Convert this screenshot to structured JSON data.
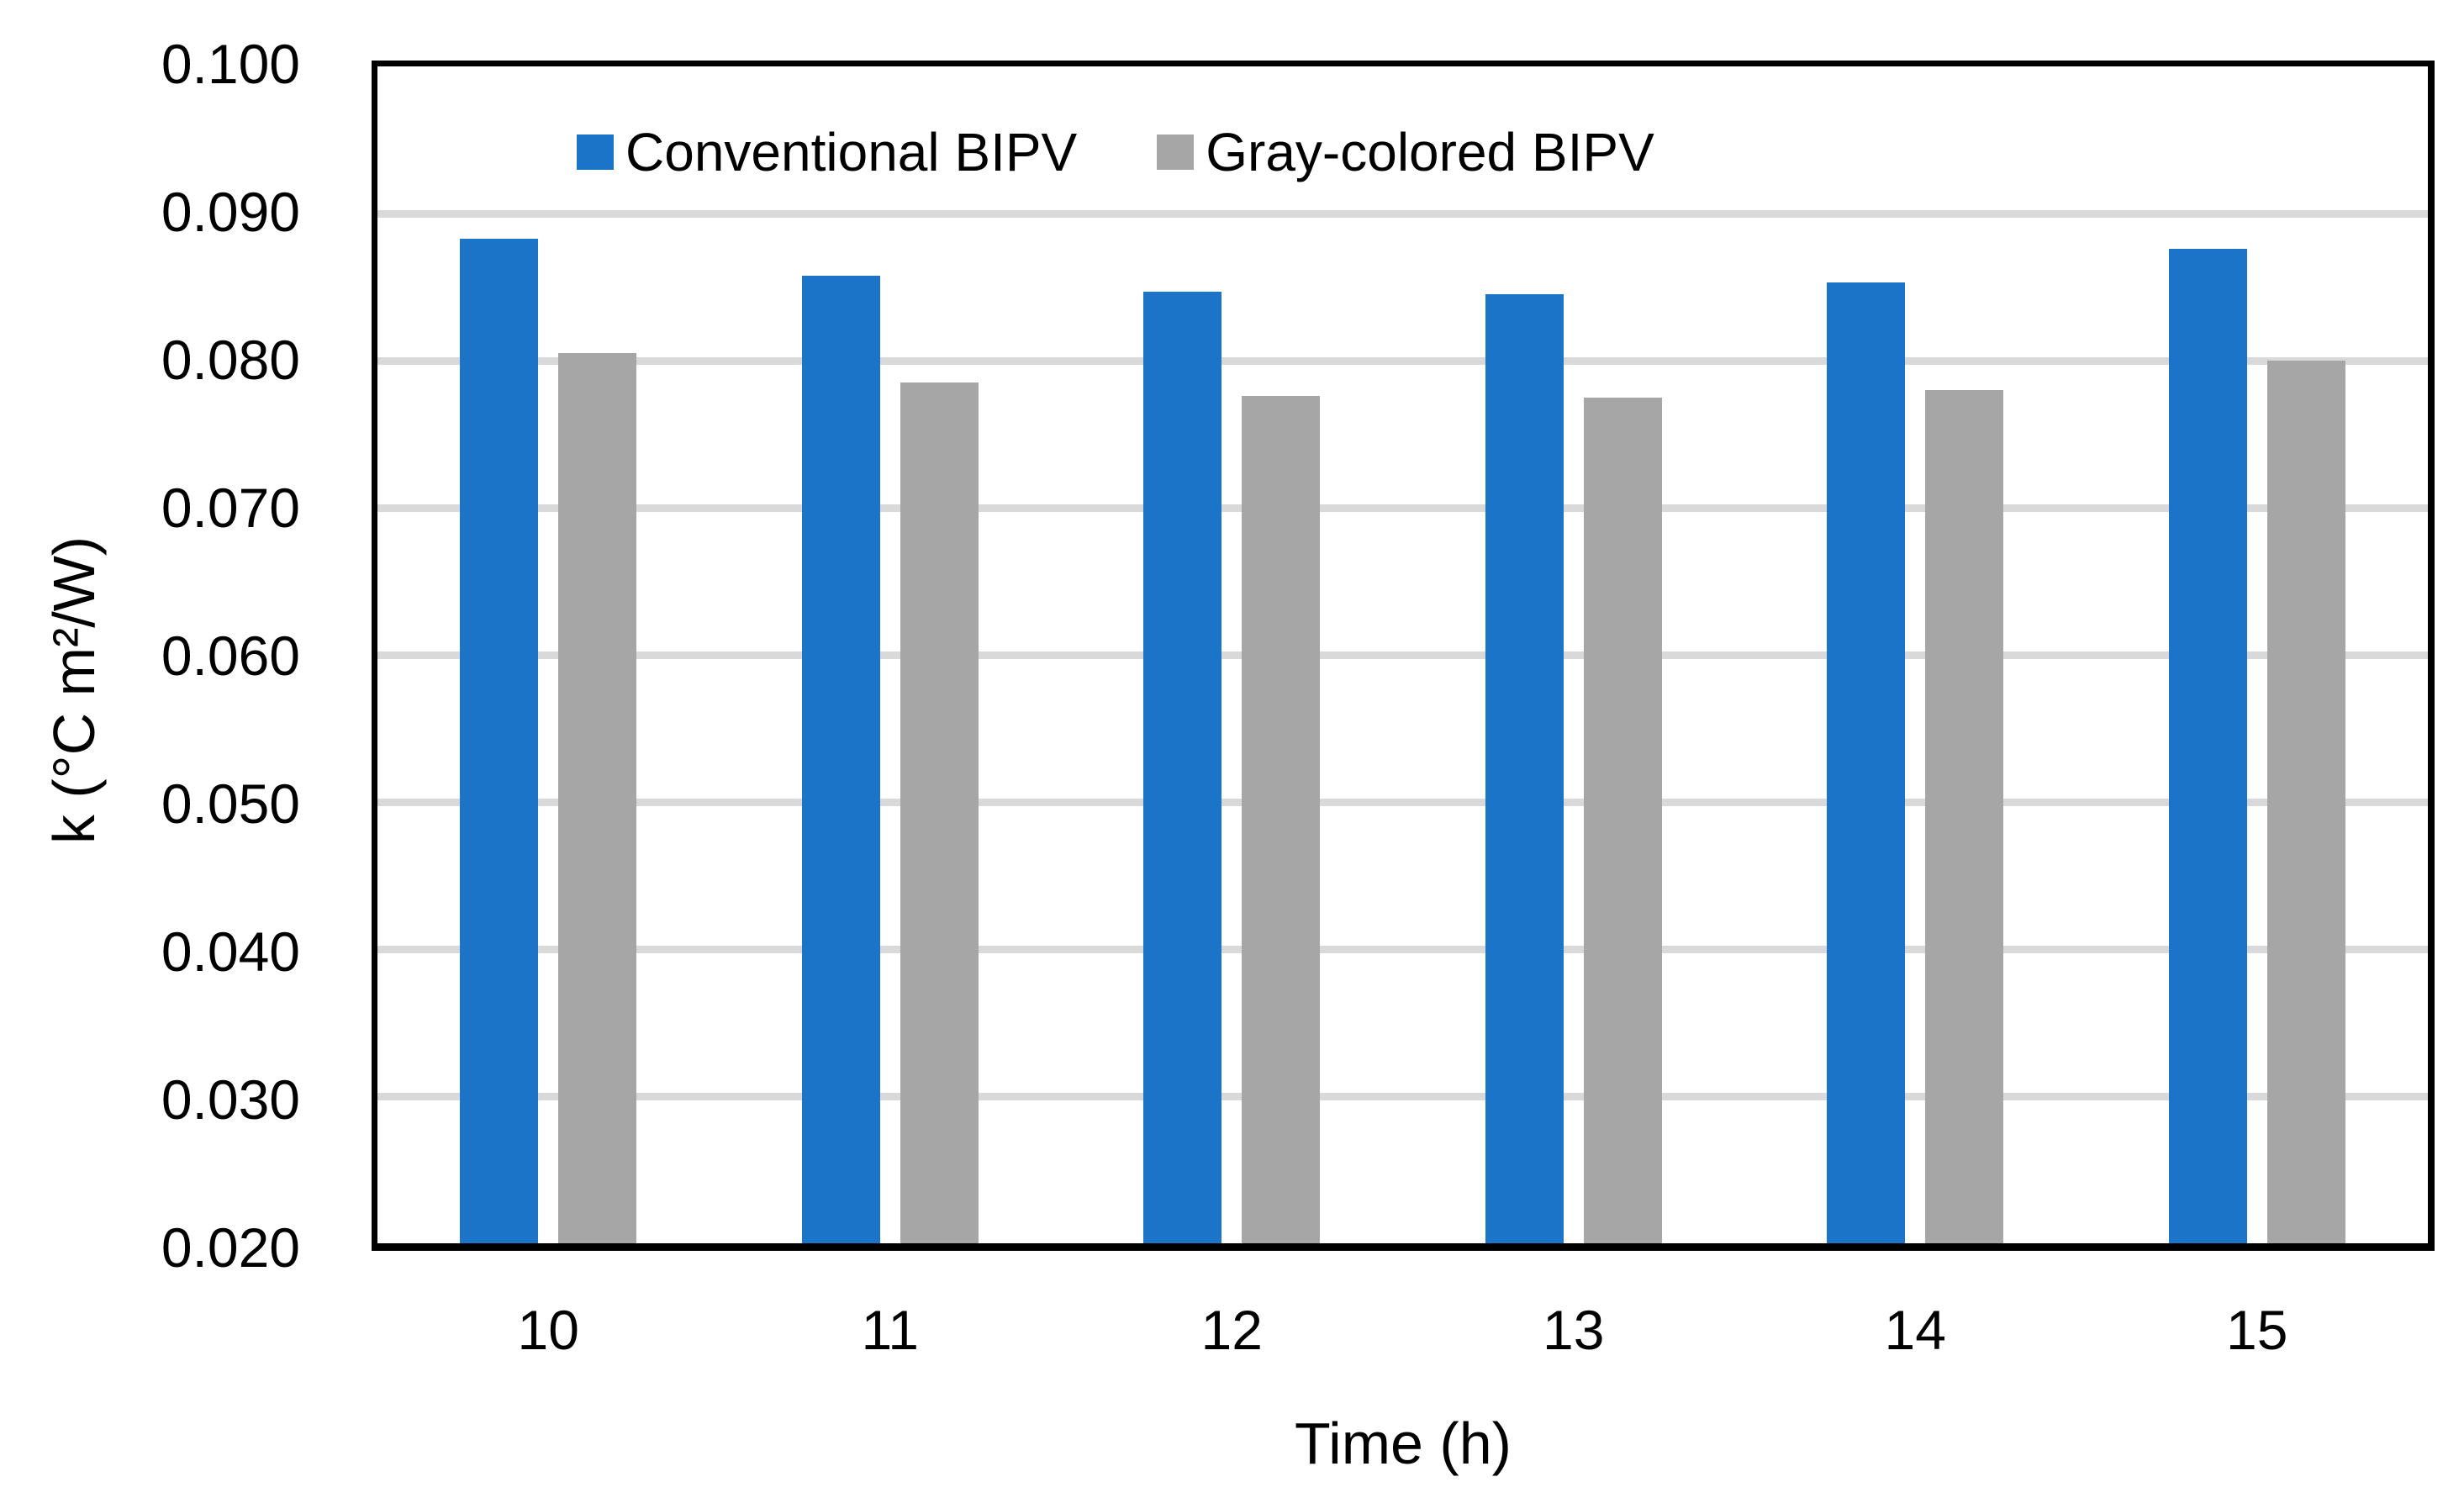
{
  "figure": {
    "background": "#FFFFFF",
    "text_color": "#000000"
  },
  "chart_data": {
    "type": "bar",
    "title": "",
    "categories": [
      "10",
      "11",
      "12",
      "13",
      "14",
      "15"
    ],
    "series": [
      {
        "name": "Conventional BIPV",
        "color": "#1B74C8",
        "values": [
          0.0883,
          0.0858,
          0.0847,
          0.0845,
          0.0853,
          0.0876
        ]
      },
      {
        "name": "Gray-colored BIPV",
        "color": "#A6A6A6",
        "values": [
          0.0805,
          0.0785,
          0.0776,
          0.0775,
          0.078,
          0.08
        ]
      }
    ],
    "xlabel": "Time (h)",
    "ylabel": "k (°C m²/W)",
    "ylim": [
      0.02,
      0.1
    ],
    "ytick_step": 0.01,
    "y_tick_labels": [
      "0.100",
      "0.090",
      "0.080",
      "0.070",
      "0.060",
      "0.050",
      "0.040",
      "0.030",
      "0.020"
    ],
    "x_tick_labels": [
      "10",
      "11",
      "12",
      "13",
      "14",
      "15"
    ],
    "grid": "horizontal",
    "gridline_color": "#D9D9D9",
    "axis_color": "#000000",
    "legend_position": "top-inside-left"
  }
}
